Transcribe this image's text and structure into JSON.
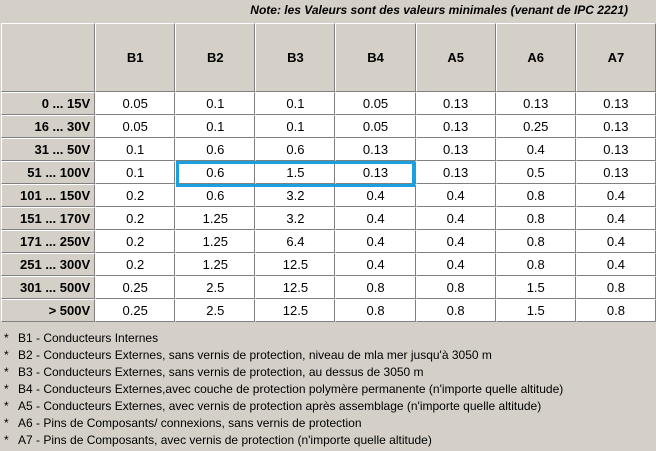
{
  "note": "Note: les Valeurs sont des valeurs minimales (venant de IPC 2221)",
  "columns": [
    "B1",
    "B2",
    "B3",
    "B4",
    "A5",
    "A6",
    "A7"
  ],
  "rows": [
    {
      "label": "0 ... 15V",
      "values": [
        "0.05",
        "0.1",
        "0.1",
        "0.05",
        "0.13",
        "0.13",
        "0.13"
      ]
    },
    {
      "label": "16 ... 30V",
      "values": [
        "0.05",
        "0.1",
        "0.1",
        "0.05",
        "0.13",
        "0.25",
        "0.13"
      ]
    },
    {
      "label": "31 ... 50V",
      "values": [
        "0.1",
        "0.6",
        "0.6",
        "0.13",
        "0.13",
        "0.4",
        "0.13"
      ]
    },
    {
      "label": "51 ... 100V",
      "values": [
        "0.1",
        "0.6",
        "1.5",
        "0.13",
        "0.13",
        "0.5",
        "0.13"
      ]
    },
    {
      "label": "101 ... 150V",
      "values": [
        "0.2",
        "0.6",
        "3.2",
        "0.4",
        "0.4",
        "0.8",
        "0.4"
      ]
    },
    {
      "label": "151 ... 170V",
      "values": [
        "0.2",
        "1.25",
        "3.2",
        "0.4",
        "0.4",
        "0.8",
        "0.4"
      ]
    },
    {
      "label": "171 ... 250V",
      "values": [
        "0.2",
        "1.25",
        "6.4",
        "0.4",
        "0.4",
        "0.8",
        "0.4"
      ]
    },
    {
      "label": "251 ... 300V",
      "values": [
        "0.2",
        "1.25",
        "12.5",
        "0.4",
        "0.4",
        "0.8",
        "0.4"
      ]
    },
    {
      "label": "301 ... 500V",
      "values": [
        "0.25",
        "2.5",
        "12.5",
        "0.8",
        "0.8",
        "1.5",
        "0.8"
      ]
    },
    {
      "label": "> 500V",
      "values": [
        "0.25",
        "2.5",
        "12.5",
        "0.8",
        "0.8",
        "1.5",
        "0.8"
      ]
    }
  ],
  "highlight_color": "#1aa0dc",
  "legend": [
    {
      "star": "*",
      "text": "B1 - Conducteurs  Internes"
    },
    {
      "star": "*",
      "text": "B2 - Conducteurs  Externes, sans vernis  de protection, niveau de mla mer jusqu'à 3050 m"
    },
    {
      "star": "*",
      "text": "B3 - Conducteurs  Externes, sans vernis  de protection, au dessus de 3050 m"
    },
    {
      "star": "*",
      "text": "B4 - Conducteurs  Externes,avec couche de protection polymère permanente (n'importe quelle altitude)"
    },
    {
      "star": "*",
      "text": "A5 - Conducteurs  Externes, avec vernis de protection après assemblage (n'importe quelle altitude)"
    },
    {
      "star": "*",
      "text": "A6 - Pins de Composants/ connexions, sans vernis de protection"
    },
    {
      "star": "*",
      "text": "A7 -  Pins de Composants, avec vernis de protection (n'importe quelle altitude)"
    }
  ]
}
